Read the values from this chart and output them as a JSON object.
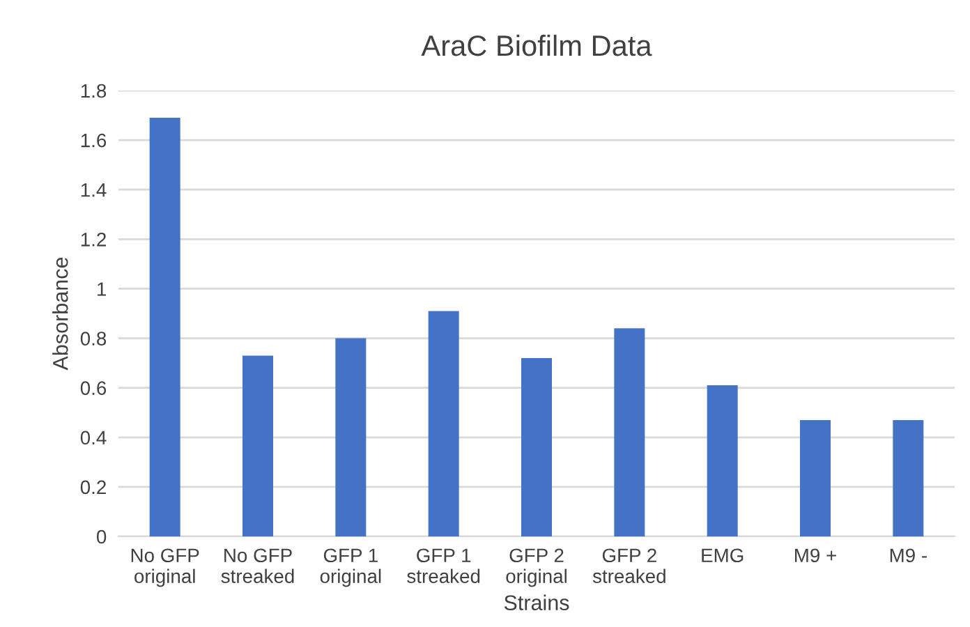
{
  "chart_data": {
    "type": "bar",
    "title": "AraC Biofilm Data",
    "xlabel": "Strains",
    "ylabel": "Absorbance",
    "categories": [
      "No GFP\noriginal",
      "No GFP\nstreaked",
      "GFP 1\noriginal",
      "GFP 1\nstreaked",
      "GFP 2\noriginal",
      "GFP 2\nstreaked",
      "EMG",
      "M9 +",
      "M9 -"
    ],
    "values": [
      1.69,
      0.73,
      0.8,
      0.91,
      0.72,
      0.84,
      0.61,
      0.47,
      0.47
    ],
    "color": "#4472c4",
    "ylim": [
      0,
      1.8
    ],
    "yticks": [
      0,
      {
        "value": 0.2,
        "label": "0.2"
      },
      {
        "value": 0.4,
        "label": "0.4"
      },
      {
        "value": 0.6,
        "label": "0.6"
      },
      {
        "value": 0.8,
        "label": "0.8"
      },
      1,
      {
        "value": 1.2,
        "label": "1.2"
      },
      {
        "value": 1.4,
        "label": "1.4"
      },
      {
        "value": 1.6,
        "label": "1.6"
      },
      {
        "value": 1.8,
        "label": "1.8"
      }
    ],
    "grid": "y"
  }
}
